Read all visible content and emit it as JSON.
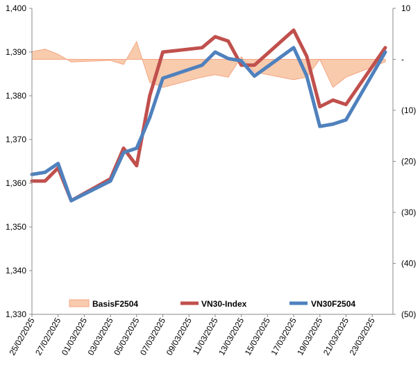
{
  "chart_data": {
    "type": "line",
    "left_axis": {
      "ylim": [
        1330,
        1400
      ],
      "ticks": [
        1330,
        1340,
        1350,
        1360,
        1370,
        1380,
        1390,
        1400
      ],
      "tick_labels": [
        "1,330",
        "1,340",
        "1,350",
        "1,360",
        "1,370",
        "1,380",
        "1,390",
        "1,400"
      ]
    },
    "right_axis": {
      "ylim": [
        -50,
        10
      ],
      "ticks": [
        -50,
        -40,
        -30,
        -20,
        -10,
        0,
        10
      ],
      "tick_labels": [
        "(50)",
        "(40)",
        "(30)",
        "(20)",
        "(10)",
        "-",
        "10"
      ]
    },
    "x_tick_labels": [
      "25/02/2025",
      "27/02/2025",
      "01/03/2025",
      "03/03/2025",
      "05/03/2025",
      "07/03/2025",
      "09/03/2025",
      "11/03/2025",
      "13/03/2025",
      "15/03/2025",
      "17/03/2025",
      "19/03/2025",
      "21/03/2025",
      "23/03/2025"
    ],
    "x": [
      "25/02/2025",
      "26/02/2025",
      "27/02/2025",
      "28/02/2025",
      "03/03/2025",
      "04/03/2025",
      "05/03/2025",
      "06/03/2025",
      "07/03/2025",
      "10/03/2025",
      "11/03/2025",
      "12/03/2025",
      "13/03/2025",
      "14/03/2025",
      "17/03/2025",
      "18/03/2025",
      "19/03/2025",
      "20/03/2025",
      "21/03/2025",
      "24/03/2025"
    ],
    "legend": [
      "BasisF2504",
      "VN30-Index",
      "VN30F2504"
    ],
    "series": [
      {
        "name": "BasisF2504",
        "axis": "right",
        "kind": "area",
        "color": "#f8cbad",
        "stroke": "#f4a582",
        "values": [
          1.5,
          2.0,
          1.0,
          -0.5,
          -0.2,
          -1.0,
          3.5,
          -4.5,
          -5.5,
          -3.5,
          -3.0,
          -3.5,
          0.5,
          -2.5,
          -4.0,
          -3.5,
          0.0,
          -5.5,
          -3.5,
          -0.5
        ]
      },
      {
        "name": "VN30-Index",
        "axis": "left",
        "kind": "line",
        "color": "#c0504d",
        "values": [
          1360.5,
          1360.5,
          1363.5,
          1356.0,
          1361.0,
          1368.0,
          1364.0,
          1380.0,
          1390.0,
          1391.0,
          1393.5,
          1392.5,
          1387.0,
          1387.0,
          1395.0,
          1389.0,
          1377.5,
          1379.0,
          1378.0,
          1391.0
        ]
      },
      {
        "name": "VN30F2504",
        "axis": "left",
        "kind": "line",
        "color": "#4f81bd",
        "values": [
          1362.0,
          1362.5,
          1364.5,
          1356.0,
          1360.5,
          1367.0,
          1368.0,
          1375.0,
          1384.0,
          1387.0,
          1390.0,
          1388.5,
          1388.0,
          1384.5,
          1391.0,
          1384.5,
          1373.0,
          1373.5,
          1374.5,
          1390.0
        ]
      }
    ]
  }
}
